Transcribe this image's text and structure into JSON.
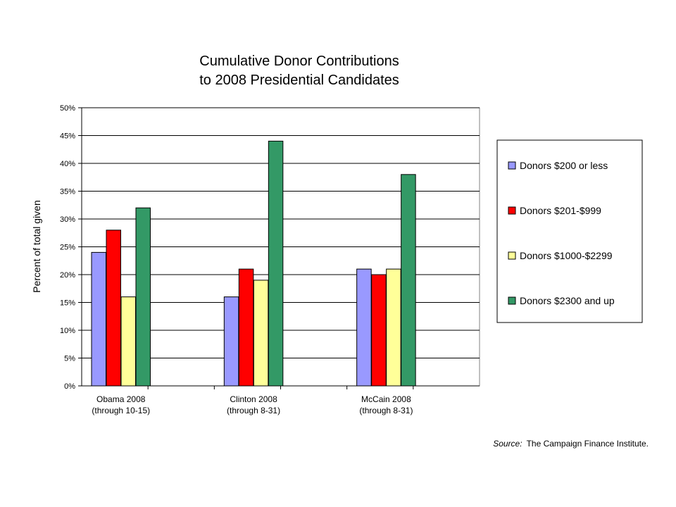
{
  "chart_data": {
    "type": "bar",
    "title_lines": [
      "Cumulative Donor Contributions",
      "to 2008 Presidential Candidates"
    ],
    "ylabel": "Percent of total given",
    "xlabel": "",
    "ylim": [
      0,
      50
    ],
    "y_ticks": [
      "0%",
      "5%",
      "10%",
      "15%",
      "20%",
      "25%",
      "30%",
      "35%",
      "40%",
      "45%",
      "50%"
    ],
    "grid": true,
    "legend_position": "right",
    "categories": [
      [
        "Obama 2008",
        "(through 10-15)"
      ],
      [
        "Clinton 2008",
        "(through 8-31)"
      ],
      [
        "McCain 2008",
        "(through 8-31)"
      ]
    ],
    "series": [
      {
        "name": "Donors $200 or less",
        "color": "#9999ff",
        "values": [
          24,
          16,
          21
        ]
      },
      {
        "name": "Donors $201-$999",
        "color": "#ff0000",
        "values": [
          28,
          21,
          20
        ]
      },
      {
        "name": "Donors $1000-$2299",
        "color": "#ffff99",
        "values": [
          16,
          19,
          21
        ]
      },
      {
        "name": "Donors $2300 and up",
        "color": "#339966",
        "values": [
          32,
          44,
          38
        ]
      }
    ]
  },
  "source": {
    "label": "Source:",
    "text": "The Campaign Finance Institute."
  }
}
